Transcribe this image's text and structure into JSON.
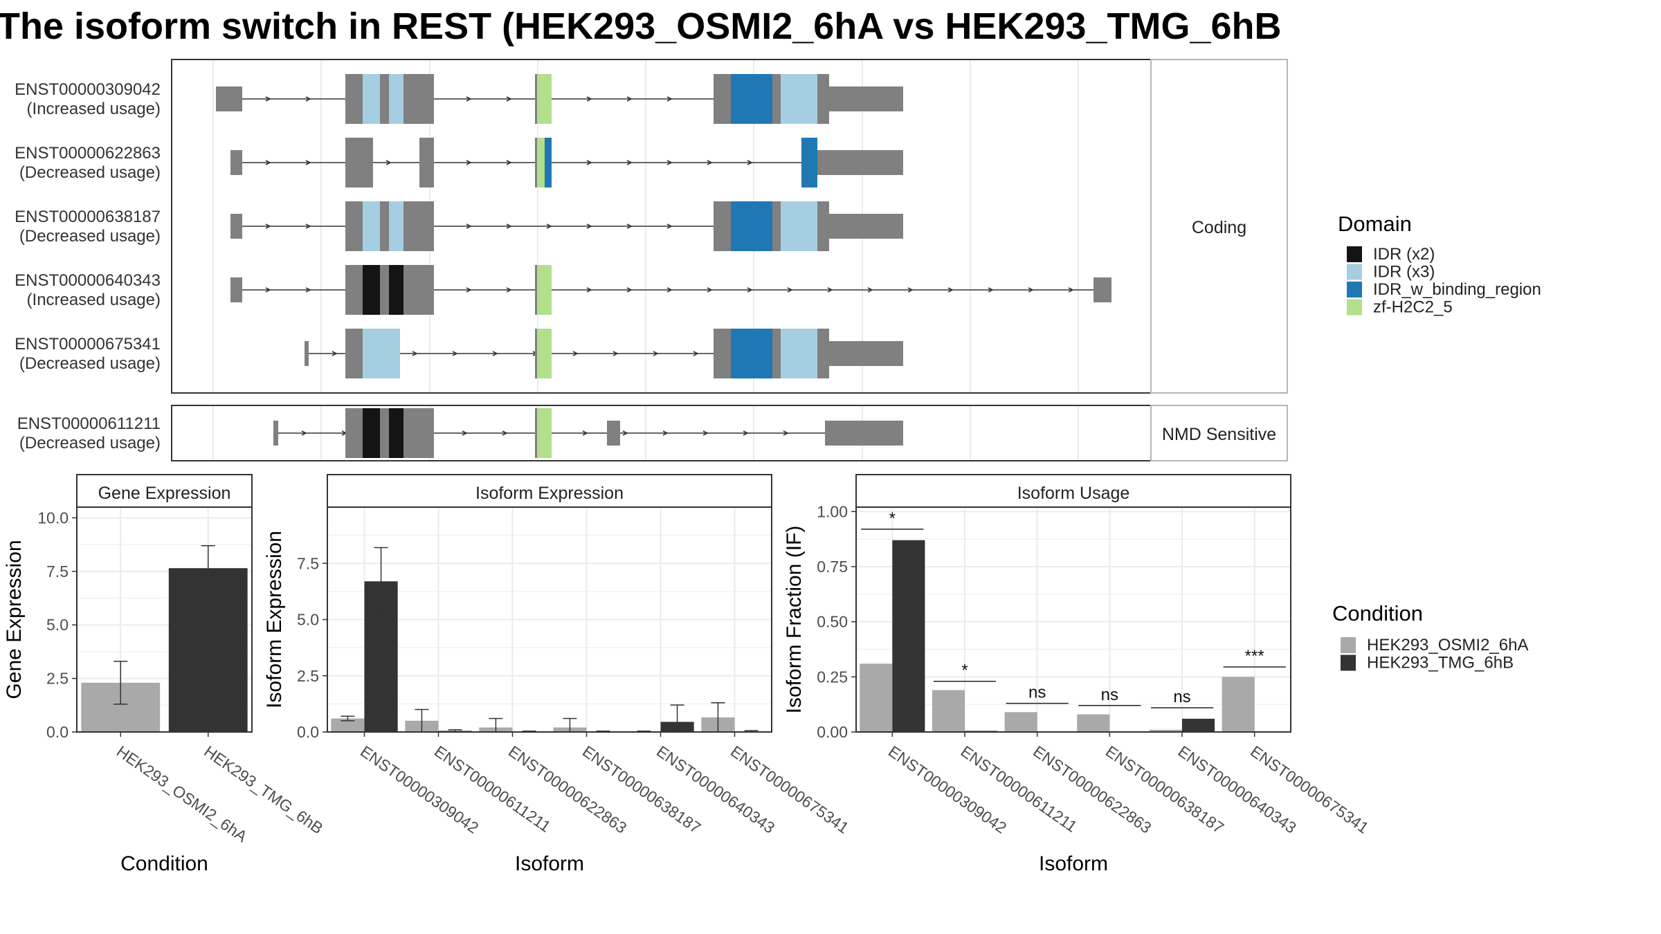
{
  "title": "The isoform switch in REST (HEK293_OSMI2_6hA vs HEK293_TMG_6hB",
  "colors": {
    "exon": "#808080",
    "domain_idr_x2": "#141414",
    "domain_idr_x3": "#a6cee3",
    "domain_idr_binding": "#1f78b4",
    "domain_zf": "#b2df8a",
    "cond_a": "#a9a9a9",
    "cond_b": "#333333",
    "panel_border": "#333333",
    "strip_fill": "#ffffff",
    "grid": "#ebebeb"
  },
  "structure": {
    "coding_label": "Coding",
    "nmd_label": "NMD Sensitive",
    "transcripts": [
      {
        "id": "ENST00000309042",
        "usage": "(Increased usage)",
        "group": "coding"
      },
      {
        "id": "ENST00000622863",
        "usage": "(Decreased usage)",
        "group": "coding"
      },
      {
        "id": "ENST00000638187",
        "usage": "(Decreased usage)",
        "group": "coding"
      },
      {
        "id": "ENST00000640343",
        "usage": "(Increased usage)",
        "group": "coding"
      },
      {
        "id": "ENST00000675341",
        "usage": "(Decreased usage)",
        "group": "coding"
      },
      {
        "id": "ENST00000611211",
        "usage": "(Decreased usage)",
        "group": "nmd"
      }
    ]
  },
  "legends": {
    "domain_title": "Domain",
    "domains": [
      "IDR (x2)",
      "IDR (x3)",
      "IDR_w_binding_region",
      "zf-H2C2_5"
    ],
    "condition_title": "Condition",
    "conditions": [
      "HEK293_OSMI2_6hA",
      "HEK293_TMG_6hB"
    ]
  },
  "chart_data": [
    {
      "type": "bar",
      "title": "Gene Expression",
      "xlabel": "Condition",
      "ylabel": "Gene Expression",
      "ylim": [
        0,
        10.5
      ],
      "yticks": [
        0,
        2.5,
        5,
        7.5,
        10
      ],
      "ytick_labels": [
        "0.0",
        "2.5",
        "5.0",
        "7.5",
        "10.0"
      ],
      "categories": [
        "HEK293_OSMI2_6hA",
        "HEK293_TMG_6hB"
      ],
      "values": [
        2.3,
        7.65
      ],
      "error_low": [
        1.3,
        6.6
      ],
      "error_high": [
        3.3,
        8.7
      ]
    },
    {
      "type": "bar",
      "title": "Isoform Expression",
      "xlabel": "Isoform",
      "ylabel": "Isoform Expression",
      "ylim": [
        0,
        10.0
      ],
      "yticks": [
        0,
        2.5,
        5,
        7.5
      ],
      "ytick_labels": [
        "0.0",
        "2.5",
        "5.0",
        "7.5"
      ],
      "categories": [
        "ENST00000309042",
        "ENST00000611211",
        "ENST00000622863",
        "ENST00000638187",
        "ENST00000640343",
        "ENST00000675341"
      ],
      "series": [
        {
          "name": "HEK293_OSMI2_6hA",
          "values": [
            0.6,
            0.5,
            0.2,
            0.2,
            0.02,
            0.65
          ],
          "error_low": [
            0.5,
            0.0,
            0.0,
            0.0,
            0.0,
            0.0
          ],
          "error_high": [
            0.7,
            1.0,
            0.6,
            0.6,
            0.04,
            1.3
          ]
        },
        {
          "name": "HEK293_TMG_6hB",
          "values": [
            6.7,
            0.05,
            0.02,
            0.02,
            0.45,
            0.03
          ],
          "error_low": [
            5.2,
            0.0,
            0.0,
            0.0,
            0.0,
            0.0
          ],
          "error_high": [
            8.2,
            0.1,
            0.04,
            0.04,
            1.2,
            0.06
          ]
        }
      ]
    },
    {
      "type": "bar",
      "title": "Isoform Usage",
      "xlabel": "Isoform",
      "ylabel": "Isoform Fraction (IF)",
      "ylim": [
        0,
        1.02
      ],
      "yticks": [
        0,
        0.25,
        0.5,
        0.75,
        1.0
      ],
      "ytick_labels": [
        "0.00",
        "0.25",
        "0.50",
        "0.75",
        "1.00"
      ],
      "categories": [
        "ENST00000309042",
        "ENST00000611211",
        "ENST00000622863",
        "ENST00000638187",
        "ENST00000640343",
        "ENST00000675341"
      ],
      "series": [
        {
          "name": "HEK293_OSMI2_6hA",
          "values": [
            0.31,
            0.19,
            0.09,
            0.08,
            0.01,
            0.25
          ]
        },
        {
          "name": "HEK293_TMG_6hB",
          "values": [
            0.87,
            0.005,
            0.0,
            0.0,
            0.06,
            0.0
          ]
        }
      ],
      "significance": [
        "*",
        "*",
        "ns",
        "ns",
        "ns",
        "***"
      ],
      "significance_y": [
        0.92,
        0.23,
        0.13,
        0.12,
        0.11,
        0.295
      ]
    }
  ]
}
